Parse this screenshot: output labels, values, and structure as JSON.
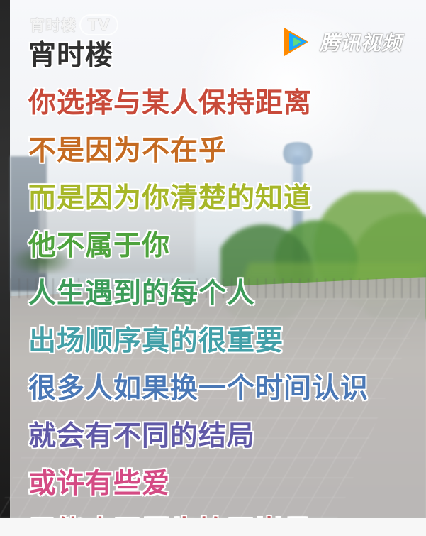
{
  "watermarks": {
    "channel": {
      "text": "宵时楼",
      "badge": "TV",
      "icon": "channel-watermark-icon"
    },
    "platform": {
      "icon": "tencent-video-logo-icon",
      "text": "腾讯视频",
      "colors": {
        "orange": "#ff8a00",
        "blue": "#19a7ff",
        "green": "#3fd266"
      }
    }
  },
  "lyrics": [
    {
      "text": "宵时楼",
      "color": "#303030"
    },
    {
      "text": "你选择与某人保持距离",
      "color": "#c84a3a"
    },
    {
      "text": "不是因为不在乎",
      "color": "#c56b22"
    },
    {
      "text": "而是因为你清楚的知道",
      "color": "#a7b728"
    },
    {
      "text": "他不属于你",
      "color": "#4ea33d"
    },
    {
      "text": "人生遇到的每个人",
      "color": "#3c9c59"
    },
    {
      "text": "出场顺序真的很重要",
      "color": "#43a0a8"
    },
    {
      "text": "很多人如果换一个时间认识",
      "color": "#4a78b6"
    },
    {
      "text": "就会有不同的结局",
      "color": "#6059a7"
    },
    {
      "text": "或许有些爱",
      "color": "#d44b84"
    },
    {
      "text": "只能止于唇齿掩于岁月",
      "color": "#bf5e62"
    }
  ]
}
